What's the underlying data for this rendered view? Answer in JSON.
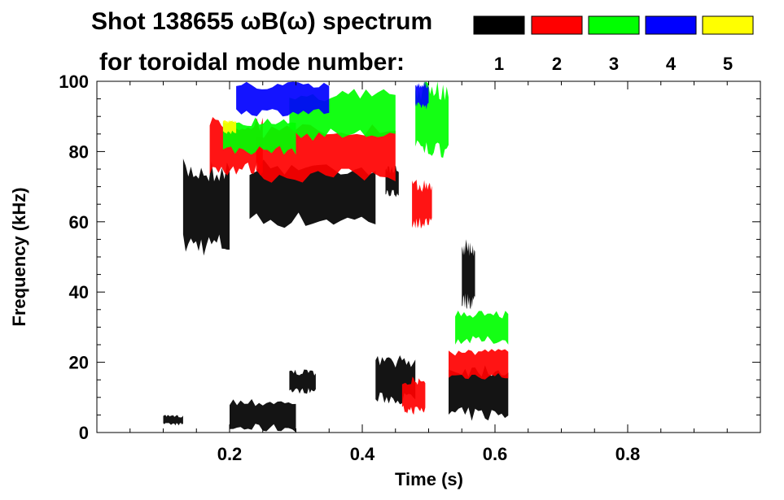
{
  "chart_data": {
    "type": "heatmap",
    "title_line1": "Shot 138655 ωB(ω) spectrum",
    "title_line2": "for toroidal mode number:",
    "xlabel": "Time (s)",
    "ylabel": "Frequency (kHz)",
    "xlim": [
      0.0,
      1.0
    ],
    "ylim": [
      0,
      100
    ],
    "x_ticks": [
      0.2,
      0.4,
      0.6,
      0.8
    ],
    "x_tick_labels": [
      "0.2",
      "0.4",
      "0.6",
      "0.8"
    ],
    "y_ticks": [
      0,
      20,
      40,
      60,
      80,
      100
    ],
    "y_tick_labels": [
      "0",
      "20",
      "40",
      "60",
      "80",
      "100"
    ],
    "grid": false,
    "legend_placement": "top-right",
    "modes": [
      {
        "label": "1",
        "color": "#000000"
      },
      {
        "label": "2",
        "color": "#ff0000"
      },
      {
        "label": "3",
        "color": "#00ff00"
      },
      {
        "label": "4",
        "color": "#0000ff"
      },
      {
        "label": "5",
        "color": "#ffff00"
      }
    ],
    "regions": [
      {
        "mode": "1",
        "t": [
          0.13,
          0.2
        ],
        "f": [
          50,
          78
        ]
      },
      {
        "mode": "1",
        "t": [
          0.23,
          0.42
        ],
        "f": [
          58,
          78
        ]
      },
      {
        "mode": "1",
        "t": [
          0.435,
          0.455
        ],
        "f": [
          67,
          76
        ]
      },
      {
        "mode": "1",
        "t": [
          0.1,
          0.13
        ],
        "f": [
          2,
          5
        ]
      },
      {
        "mode": "1",
        "t": [
          0.2,
          0.3
        ],
        "f": [
          0,
          10
        ]
      },
      {
        "mode": "1",
        "t": [
          0.29,
          0.33
        ],
        "f": [
          11,
          18
        ]
      },
      {
        "mode": "1",
        "t": [
          0.42,
          0.48
        ],
        "f": [
          8,
          22
        ]
      },
      {
        "mode": "1",
        "t": [
          0.53,
          0.62
        ],
        "f": [
          3,
          20
        ]
      },
      {
        "mode": "1",
        "t": [
          0.55,
          0.57
        ],
        "f": [
          35,
          55
        ]
      },
      {
        "mode": "2",
        "t": [
          0.17,
          0.25
        ],
        "f": [
          73,
          90
        ]
      },
      {
        "mode": "2",
        "t": [
          0.24,
          0.45
        ],
        "f": [
          71,
          88
        ]
      },
      {
        "mode": "2",
        "t": [
          0.475,
          0.505
        ],
        "f": [
          58,
          72
        ]
      },
      {
        "mode": "2",
        "t": [
          0.46,
          0.495
        ],
        "f": [
          5,
          16
        ]
      },
      {
        "mode": "2",
        "t": [
          0.53,
          0.62
        ],
        "f": [
          15,
          24
        ]
      },
      {
        "mode": "3",
        "t": [
          0.19,
          0.3
        ],
        "f": [
          79,
          90
        ]
      },
      {
        "mode": "3",
        "t": [
          0.29,
          0.45
        ],
        "f": [
          83,
          98
        ]
      },
      {
        "mode": "3",
        "t": [
          0.48,
          0.53
        ],
        "f": [
          78,
          100
        ]
      },
      {
        "mode": "3",
        "t": [
          0.54,
          0.62
        ],
        "f": [
          25,
          35
        ]
      },
      {
        "mode": "4",
        "t": [
          0.21,
          0.35
        ],
        "f": [
          90,
          100
        ]
      },
      {
        "mode": "4",
        "t": [
          0.48,
          0.5
        ],
        "f": [
          92,
          100
        ]
      },
      {
        "mode": "5",
        "t": [
          0.19,
          0.21
        ],
        "f": [
          85,
          89
        ]
      }
    ]
  }
}
